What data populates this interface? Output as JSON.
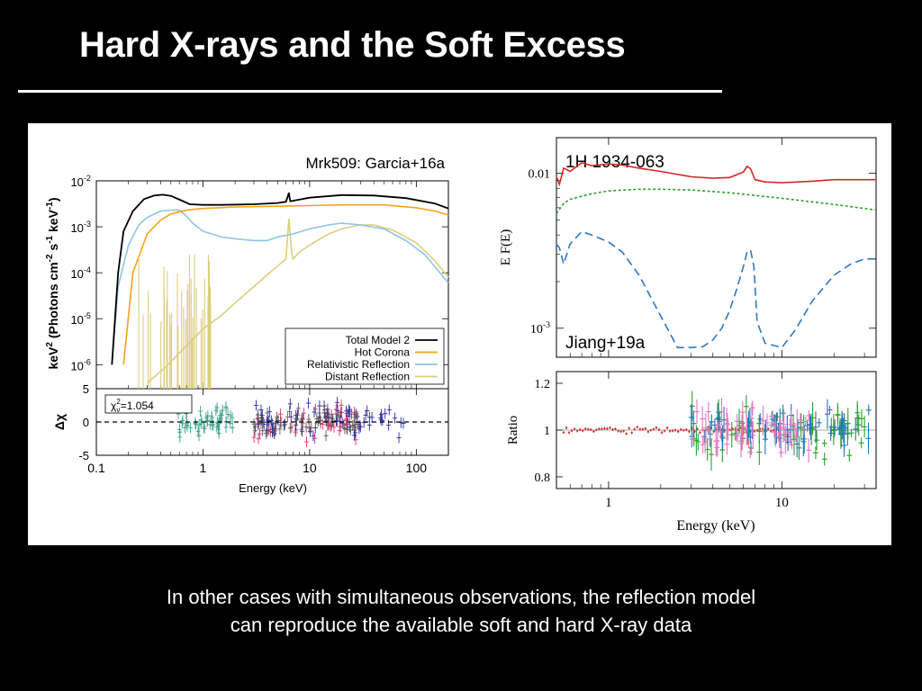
{
  "slide": {
    "title": "Hard X-rays and the Soft Excess",
    "caption_lines": [
      "In other cases with simultaneous observations, the reflection model",
      "can reproduce the available soft and hard X-ray data"
    ]
  },
  "chart_data": [
    {
      "type": "line",
      "panel": "main",
      "title": "Mrk509: Garcia+16a",
      "xlabel": "",
      "ylabel_parts": [
        "keV",
        "2",
        " (Photons cm",
        "-2",
        " s",
        "-1",
        " keV",
        "-1",
        ")"
      ],
      "xscale": "log",
      "yscale": "log",
      "xlim": [
        0.1,
        200
      ],
      "ylim": [
        3e-07,
        0.01
      ],
      "yticks": [
        0.01,
        0.001,
        0.0001,
        1e-05,
        1e-06
      ],
      "ytick_labels": [
        [
          "10",
          "-2"
        ],
        [
          "10",
          "-3"
        ],
        [
          "10",
          "-4"
        ],
        [
          "10",
          "-5"
        ],
        [
          "10",
          "-6"
        ]
      ],
      "legend_position": "lower-right",
      "series": [
        {
          "name": "Total Model 2",
          "color": "#000000",
          "x": [
            0.14,
            0.16,
            0.18,
            0.22,
            0.28,
            0.35,
            0.42,
            0.5,
            0.62,
            0.75,
            1,
            1.5,
            3,
            5,
            6,
            6.4,
            6.5,
            6.6,
            7,
            10,
            20,
            40,
            80,
            150,
            200
          ],
          "y": [
            1e-06,
            0.0001,
            0.0008,
            0.0022,
            0.004,
            0.0048,
            0.005,
            0.0047,
            0.0038,
            0.0031,
            0.003,
            0.003,
            0.0031,
            0.0033,
            0.0035,
            0.0055,
            0.0042,
            0.0036,
            0.0037,
            0.0043,
            0.0049,
            0.0048,
            0.0042,
            0.0032,
            0.0025
          ]
        },
        {
          "name": "Hot Corona",
          "color": "#f7a21b",
          "x": [
            0.18,
            0.22,
            0.3,
            0.4,
            0.5,
            0.7,
            1,
            2,
            5,
            10,
            20,
            50,
            100,
            150,
            200
          ],
          "y": [
            1e-06,
            0.0001,
            0.0007,
            0.0014,
            0.0019,
            0.0023,
            0.0025,
            0.0027,
            0.0028,
            0.0029,
            0.003,
            0.003,
            0.0026,
            0.0022,
            0.0018
          ]
        },
        {
          "name": "Relativistic Reflection",
          "color": "#8fc4e8",
          "x": [
            0.14,
            0.16,
            0.2,
            0.25,
            0.3,
            0.4,
            0.5,
            0.6,
            0.7,
            0.8,
            1,
            1.5,
            2,
            3,
            4,
            5,
            7,
            10,
            15,
            20,
            30,
            50,
            80,
            120,
            200
          ],
          "y": [
            1e-06,
            5e-05,
            0.0004,
            0.0011,
            0.0016,
            0.0022,
            0.0023,
            0.0023,
            0.0017,
            0.0012,
            0.0008,
            0.0006,
            0.00055,
            0.0005,
            0.0005,
            0.0006,
            0.0007,
            0.0009,
            0.0011,
            0.0012,
            0.0011,
            0.0009,
            0.0005,
            0.00025,
            6e-05
          ]
        },
        {
          "name": "Distant Reflection",
          "color": "#dccf7a",
          "x": [
            0.3,
            0.45,
            0.6,
            0.8,
            1,
            1.5,
            2,
            3,
            4,
            5,
            6,
            6.4,
            6.8,
            7,
            8,
            10,
            15,
            20,
            30,
            40,
            60,
            100,
            150,
            200
          ],
          "y": [
            4e-07,
            9e-07,
            1.8e-06,
            3.5e-06,
            6e-06,
            1.2e-05,
            2.2e-05,
            5e-05,
            9e-05,
            0.00014,
            0.0002,
            0.0015,
            0.00026,
            0.0002,
            0.00028,
            0.0004,
            0.0007,
            0.0009,
            0.0011,
            0.0011,
            0.00085,
            0.00045,
            0.00018,
            8e-05
          ]
        }
      ],
      "legend": [
        "Total Model 2",
        "Hot Corona",
        "Relativistic Reflection",
        "Distant Reflection"
      ]
    },
    {
      "type": "scatter",
      "panel": "residuals",
      "xlabel": "Energy (keV)",
      "ylabel": "Δχ",
      "xscale": "log",
      "xlim": [
        0.1,
        200
      ],
      "ylim": [
        -5,
        5
      ],
      "xtick_labels": [
        "0.1",
        "1",
        "10",
        "100"
      ],
      "ytick_labels": [
        "5",
        "0",
        "-5"
      ],
      "stat_label": [
        "χ",
        "ν",
        "2",
        "=1.054"
      ],
      "series": [
        {
          "name": "",
          "color": "#3aa08a",
          "x_range": [
            0.55,
            1.9
          ],
          "typical_y": 0,
          "spread": 1.6
        },
        {
          "name": "",
          "color": "#d6336c",
          "x_range": [
            3,
            30
          ],
          "typical_y": 0,
          "spread": 2.2
        },
        {
          "name": "",
          "color": "#2a2a9a",
          "x_range": [
            3,
            80
          ],
          "typical_y": 0.3,
          "spread": 2.0
        },
        {
          "name": "",
          "color": "#555555",
          "x_range": [
            3,
            30
          ],
          "typical_y": 0,
          "spread": 1.5
        }
      ]
    },
    {
      "type": "line",
      "panel": "main",
      "title": "1H 1934-063",
      "annotation": "Jiang+19a",
      "xlabel": "",
      "ylabel": "E F(E)",
      "xscale": "log",
      "yscale": "log",
      "xlim": [
        0.5,
        35
      ],
      "ylim": [
        0.00065,
        0.017
      ],
      "yticks": [
        0.01,
        0.001
      ],
      "ytick_labels": [
        [
          "0.01",
          ""
        ],
        [
          "10",
          "-3"
        ]
      ],
      "series": [
        {
          "name": "",
          "color": "#d62728",
          "dash": "",
          "x": [
            0.5,
            0.52,
            0.55,
            0.6,
            0.7,
            0.8,
            1,
            1.2,
            1.5,
            2,
            3,
            4,
            5,
            6,
            6.3,
            6.6,
            7,
            8,
            10,
            15,
            20,
            35
          ],
          "y": [
            0.0095,
            0.0085,
            0.0108,
            0.0103,
            0.0117,
            0.0112,
            0.0115,
            0.0113,
            0.0108,
            0.0103,
            0.0095,
            0.0093,
            0.0094,
            0.0102,
            0.0111,
            0.0107,
            0.0091,
            0.0088,
            0.0087,
            0.0089,
            0.0091,
            0.0091
          ]
        },
        {
          "name": "",
          "color": "#2ca02c",
          "dash": "3,2.5",
          "x": [
            0.5,
            0.55,
            0.6,
            0.8,
            1,
            1.5,
            2,
            3,
            5,
            10,
            20,
            35
          ],
          "y": [
            0.0055,
            0.0064,
            0.0068,
            0.0074,
            0.0077,
            0.0079,
            0.0079,
            0.0078,
            0.0075,
            0.0069,
            0.0063,
            0.0058
          ]
        },
        {
          "name": "",
          "color": "#2e78c2",
          "dash": "9,5",
          "x": [
            0.5,
            0.52,
            0.55,
            0.6,
            0.7,
            0.8,
            1,
            1.2,
            1.5,
            2,
            2.5,
            3,
            3.5,
            4,
            4.5,
            5,
            5.5,
            6,
            6.3,
            6.6,
            6.9,
            7.2,
            8,
            10,
            12,
            15,
            20,
            25,
            30,
            35
          ],
          "y": [
            0.0035,
            0.0033,
            0.0026,
            0.0035,
            0.0042,
            0.004,
            0.0036,
            0.0031,
            0.0022,
            0.0012,
            0.00075,
            0.00075,
            0.00076,
            0.00084,
            0.001,
            0.0013,
            0.0018,
            0.0025,
            0.0031,
            0.0032,
            0.0025,
            0.0011,
            0.0008,
            0.00075,
            0.00098,
            0.0015,
            0.0022,
            0.0026,
            0.0028,
            0.0028
          ]
        }
      ]
    },
    {
      "type": "scatter",
      "panel": "ratio",
      "xlabel": "Energy (keV)",
      "ylabel": "Ratio",
      "xscale": "log",
      "xlim": [
        0.5,
        35
      ],
      "ylim": [
        0.75,
        1.25
      ],
      "ytick_labels": [
        "1.2",
        "1",
        "0.8"
      ],
      "xtick_labels": [
        "1",
        "10"
      ],
      "series": [
        {
          "name": "",
          "color": "#d62728",
          "x_range": [
            0.5,
            10
          ],
          "typical_y": 1.0,
          "spread": 0.02
        },
        {
          "name": "",
          "color": "#2ca02c",
          "x_range": [
            3,
            30
          ],
          "typical_y": 1.0,
          "spread": 0.12
        },
        {
          "name": "",
          "color": "#1f77b4",
          "x_range": [
            3,
            35
          ],
          "typical_y": 1.0,
          "spread": 0.09
        },
        {
          "name": "",
          "color": "#e377c2",
          "x_range": [
            3,
            15
          ],
          "typical_y": 1.0,
          "spread": 0.1
        }
      ]
    }
  ]
}
